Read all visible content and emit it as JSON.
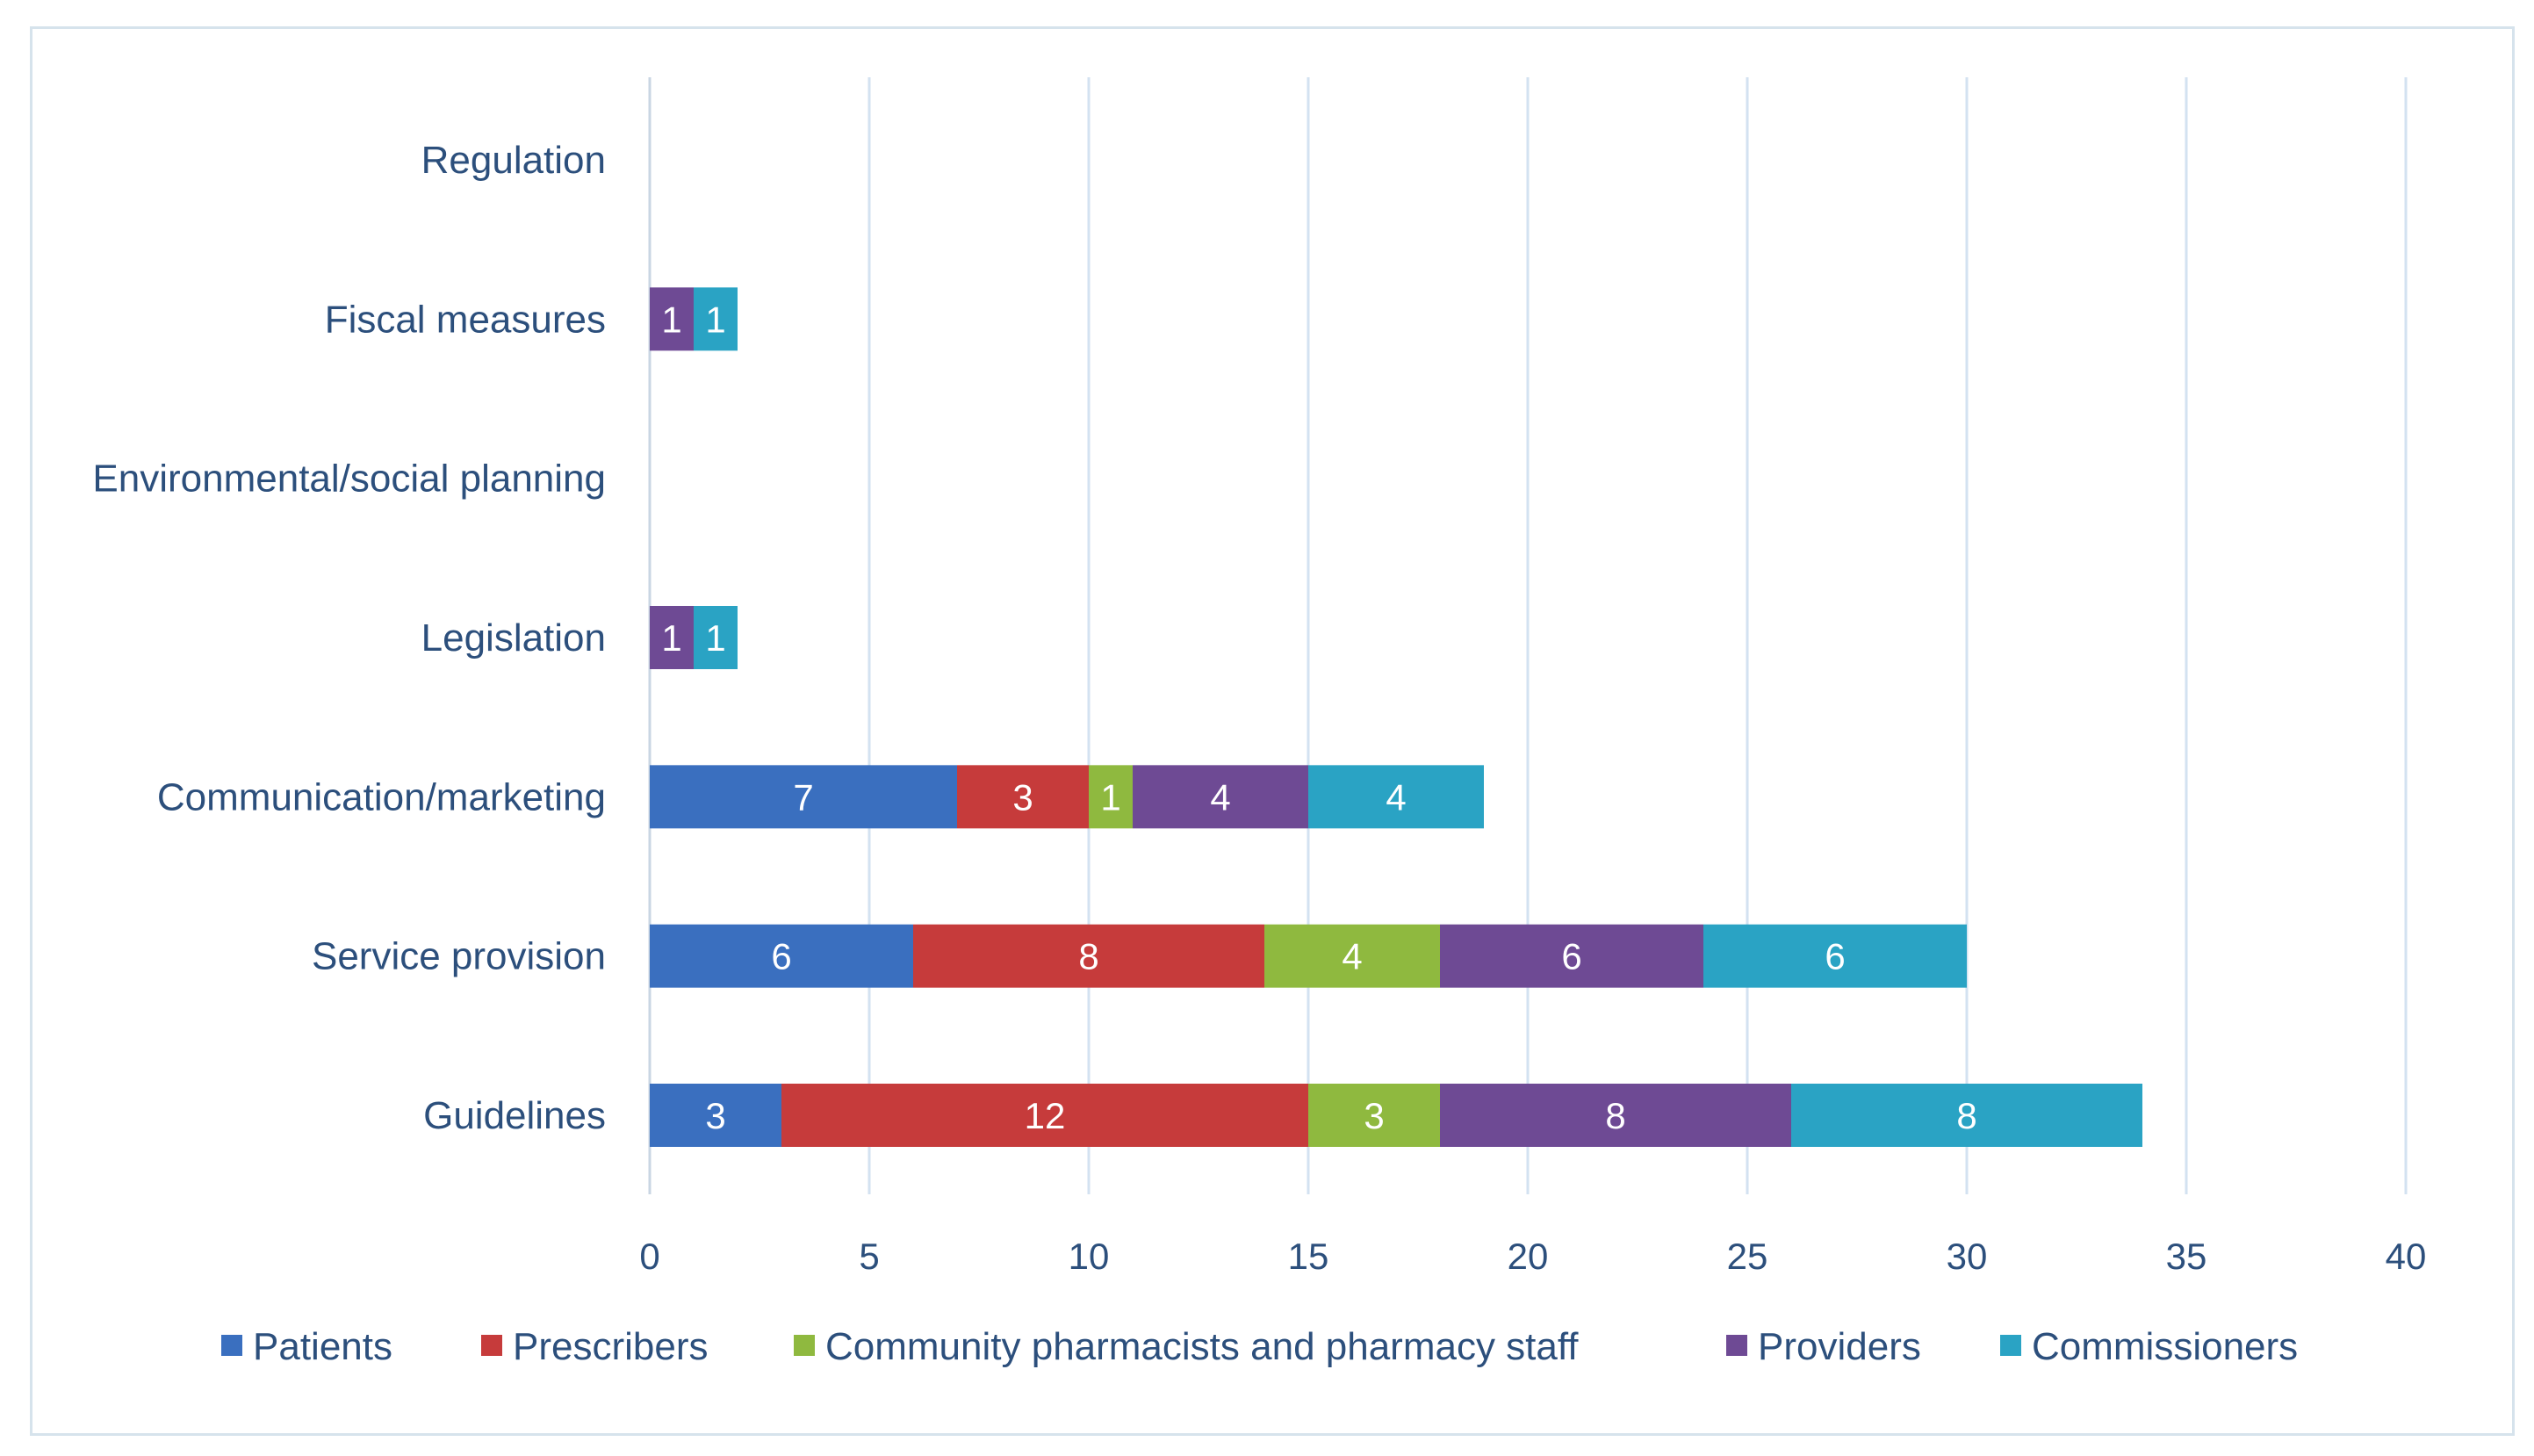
{
  "chart_data": {
    "type": "bar",
    "orientation": "horizontal",
    "stacked": true,
    "title": "",
    "xlabel": "",
    "ylabel": "",
    "xlim": [
      0,
      40
    ],
    "xticks": [
      0,
      5,
      10,
      15,
      20,
      25,
      30,
      35,
      40
    ],
    "grid": true,
    "legend_position": "bottom",
    "categories": [
      "Regulation",
      "Fiscal measures",
      "Environmental/social planning",
      "Legislation",
      "Communication/marketing",
      "Service provision",
      "Guidelines"
    ],
    "series": [
      {
        "name": "Patients",
        "color": "#3a6fbf",
        "values": [
          0,
          0,
          0,
          0,
          7,
          6,
          3
        ]
      },
      {
        "name": "Prescribers",
        "color": "#c63b3b",
        "values": [
          0,
          0,
          0,
          0,
          3,
          8,
          12
        ]
      },
      {
        "name": "Community pharmacists and pharmacy staff",
        "color": "#8fb93f",
        "values": [
          0,
          0,
          0,
          0,
          1,
          4,
          3
        ]
      },
      {
        "name": "Providers",
        "color": "#6e4a94",
        "values": [
          0,
          1,
          0,
          1,
          4,
          6,
          8
        ]
      },
      {
        "name": "Commissioners",
        "color": "#2aa3c4",
        "values": [
          0,
          1,
          0,
          1,
          4,
          6,
          8
        ]
      }
    ]
  }
}
